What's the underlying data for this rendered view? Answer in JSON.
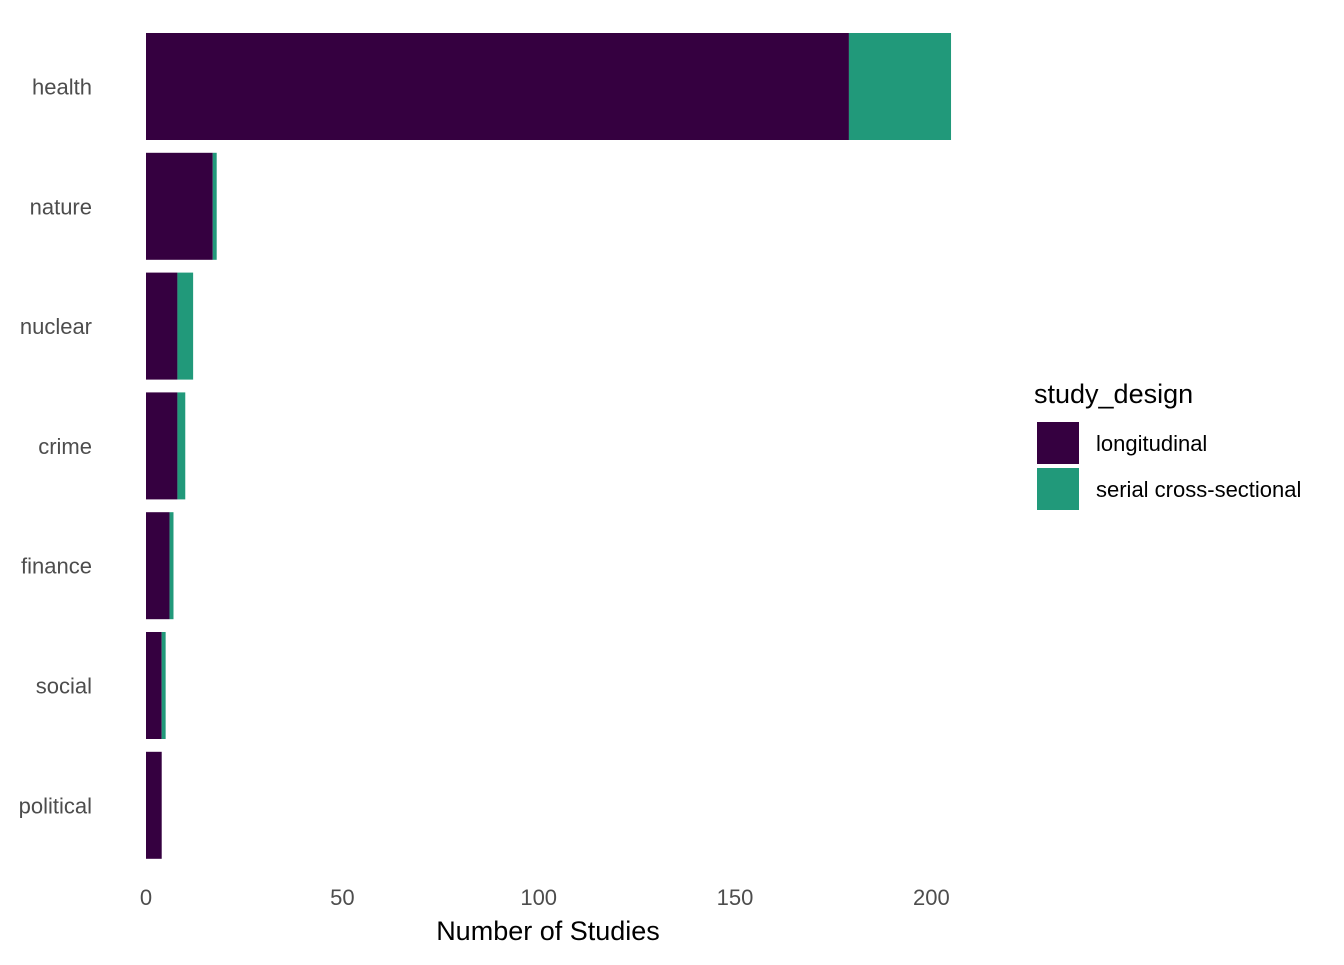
{
  "chart_data": {
    "type": "bar",
    "orientation": "horizontal",
    "stacked": true,
    "categories": [
      "health",
      "nature",
      "nuclear",
      "crime",
      "finance",
      "social",
      "political"
    ],
    "series": [
      {
        "name": "longitudinal",
        "color": "#350040",
        "values": [
          179,
          17,
          8,
          8,
          6,
          4,
          4
        ]
      },
      {
        "name": "serial cross-sectional",
        "color": "#21997a",
        "values": [
          26,
          1,
          4,
          2,
          1,
          1,
          0
        ]
      }
    ],
    "xlabel": "Number of Studies",
    "ylabel": "",
    "xlim": [
      0,
      205
    ],
    "xticks": [
      0,
      50,
      100,
      150,
      200
    ],
    "legend": {
      "title": "study_design",
      "position": "right"
    },
    "grid": false
  }
}
